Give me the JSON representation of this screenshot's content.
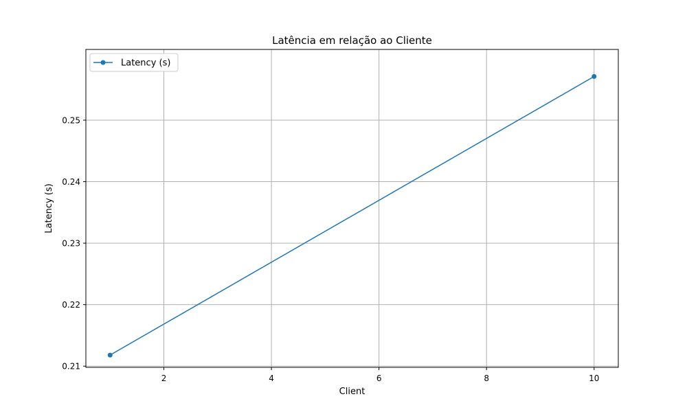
{
  "chart_data": {
    "type": "line",
    "title": "Latência em relação ao Cliente",
    "xlabel": "Client",
    "ylabel": "Latency (s)",
    "xlim": [
      0.55,
      10.45
    ],
    "ylim": [
      0.2098,
      0.2615
    ],
    "x_ticks": [
      2,
      4,
      6,
      8,
      10
    ],
    "y_ticks": [
      0.21,
      0.22,
      0.23,
      0.24,
      0.25
    ],
    "x_tick_labels": [
      "2",
      "4",
      "6",
      "8",
      "10"
    ],
    "y_tick_labels": [
      "0.21",
      "0.22",
      "0.23",
      "0.24",
      "0.25"
    ],
    "grid": true,
    "legend_position": "top-left",
    "series": [
      {
        "name": "Latency (s)",
        "color": "#1f77b4",
        "marker": "circle",
        "x": [
          1,
          10
        ],
        "y": [
          0.2118,
          0.2571
        ]
      }
    ]
  }
}
